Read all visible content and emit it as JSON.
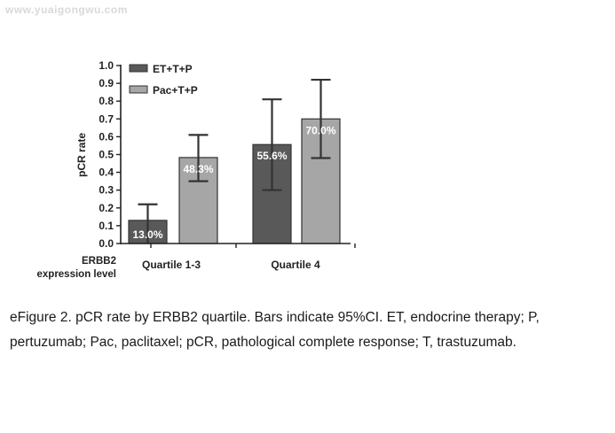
{
  "watermark": "www.yuaigongwu.com",
  "caption": "eFigure 2. pCR rate by ERBB2 quartile. Bars indicate 95%CI. ET, endocrine therapy; P, pertuzumab; Pac, paclitaxel; pCR, pathological complete response; T, trastuzumab.",
  "chart_data": {
    "type": "bar",
    "title": "",
    "ylabel": "pCR rate",
    "xgroup_label": [
      "ERBB2",
      "expression level"
    ],
    "ylim": [
      0,
      1.0
    ],
    "yticks": [
      "0.0",
      "0.1",
      "0.2",
      "0.3",
      "0.4",
      "0.5",
      "0.6",
      "0.7",
      "0.8",
      "0.9",
      "1.0"
    ],
    "categories": [
      "Quartile 1-3",
      "Quartile 4"
    ],
    "legend_position": "top-left",
    "series": [
      {
        "name": "ET+T+P",
        "color": "#595959",
        "values": [
          0.13,
          0.556
        ],
        "ci_low": [
          0.0,
          0.3
        ],
        "ci_high": [
          0.22,
          0.81
        ],
        "labels": [
          "13.0%",
          "55.6%"
        ]
      },
      {
        "name": "Pac+T+P",
        "color": "#a6a6a6",
        "values": [
          0.483,
          0.7
        ],
        "ci_low": [
          0.35,
          0.48
        ],
        "ci_high": [
          0.61,
          0.92
        ],
        "labels": [
          "48.3%",
          "70.0%"
        ]
      }
    ]
  }
}
